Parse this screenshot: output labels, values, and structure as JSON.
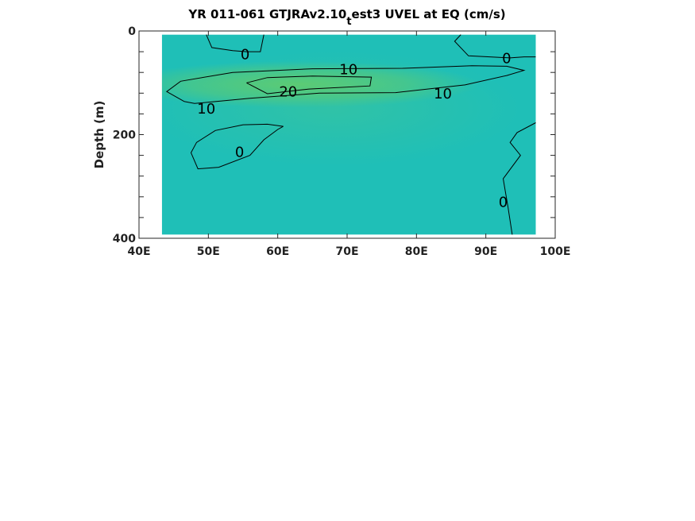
{
  "chart_data": {
    "type": "heatmap",
    "title_main": "YR 011-061 GTJRAv2.10",
    "title_sub": "t",
    "title_rest": "est3 UVEL at EQ (cm/s)",
    "ylabel": "Depth (m)",
    "xlabel": "",
    "xlim": [
      40,
      100
    ],
    "ylim": [
      0,
      400
    ],
    "y_reversed": true,
    "data_extent_x": [
      43.3,
      97.2
    ],
    "data_extent_y": [
      7,
      393
    ],
    "x_ticks": [
      40,
      50,
      60,
      70,
      80,
      90,
      100
    ],
    "x_tick_labels": [
      "40E",
      "50E",
      "60E",
      "70E",
      "80E",
      "90E",
      "100E"
    ],
    "y_ticks": [
      0,
      200,
      400
    ],
    "y_tick_labels": [
      "0",
      "200",
      "400"
    ],
    "y_minor_ticks": [
      40,
      80,
      120,
      160,
      240,
      280,
      320,
      360
    ],
    "colors": {
      "background_field": "#1fbfb7",
      "core_jet": "#5ccb74",
      "mid_field": "#3ec59a",
      "contour": "#000000"
    },
    "contour_levels": [
      {
        "level": 0,
        "label": "0",
        "segments": [
          [
            [
              49.7,
              7
            ],
            [
              50.5,
              32
            ],
            [
              53.5,
              38
            ],
            [
              55.5,
              40
            ],
            [
              57.5,
              40
            ],
            [
              58.0,
              7
            ]
          ],
          [
            [
              86.4,
              7
            ],
            [
              85.5,
              20
            ],
            [
              87.5,
              48
            ],
            [
              93.5,
              52
            ],
            [
              95.5,
              50
            ],
            [
              97.2,
              50
            ]
          ],
          [
            [
              60.8,
              184
            ],
            [
              58.5,
              180
            ],
            [
              55.0,
              181
            ],
            [
              51.0,
              192
            ],
            [
              48.3,
              215
            ],
            [
              47.5,
              235
            ],
            [
              48.5,
              266
            ],
            [
              51.5,
              263
            ],
            [
              56.0,
              240
            ],
            [
              58.0,
              210
            ],
            [
              60.0,
              190
            ],
            [
              60.8,
              184
            ]
          ],
          [
            [
              97.2,
              177
            ],
            [
              94.5,
              196
            ],
            [
              93.5,
              215
            ],
            [
              95.0,
              240
            ],
            [
              92.5,
              285
            ],
            [
              93.2,
              340
            ],
            [
              93.8,
              393
            ]
          ]
        ],
        "labels": [
          {
            "text": "0",
            "x": 55.3,
            "y": 45
          },
          {
            "text": "0",
            "x": 93.0,
            "y": 53
          },
          {
            "text": "0",
            "x": 54.5,
            "y": 234
          },
          {
            "text": "0",
            "x": 92.5,
            "y": 330
          }
        ]
      },
      {
        "level": 10,
        "label": "10",
        "segments": [
          [
            [
              46.5,
              136
            ],
            [
              44.0,
              117
            ],
            [
              46.0,
              97
            ],
            [
              53.5,
              80
            ],
            [
              65.0,
              73
            ],
            [
              78.0,
              72
            ],
            [
              88.0,
              67
            ],
            [
              93.0,
              68
            ],
            [
              95.5,
              76
            ],
            [
              93.0,
              86
            ],
            [
              87.0,
              104
            ],
            [
              77.0,
              119
            ],
            [
              66.0,
              120
            ],
            [
              56.0,
              130
            ],
            [
              48.0,
              140
            ],
            [
              46.5,
              136
            ]
          ]
        ],
        "labels": [
          {
            "text": "10",
            "x": 70.2,
            "y": 74
          },
          {
            "text": "10",
            "x": 83.8,
            "y": 121
          },
          {
            "text": "10",
            "x": 49.7,
            "y": 150
          }
        ]
      },
      {
        "level": 20,
        "label": "20",
        "segments": [
          [
            [
              55.5,
              100
            ],
            [
              58.5,
              90
            ],
            [
              65.0,
              87
            ],
            [
              73.5,
              89
            ],
            [
              73.3,
              106
            ],
            [
              64.5,
              112
            ],
            [
              58.5,
              121
            ],
            [
              55.5,
              100
            ]
          ]
        ],
        "labels": [
          {
            "text": "20",
            "x": 61.5,
            "y": 117
          }
        ]
      }
    ]
  }
}
